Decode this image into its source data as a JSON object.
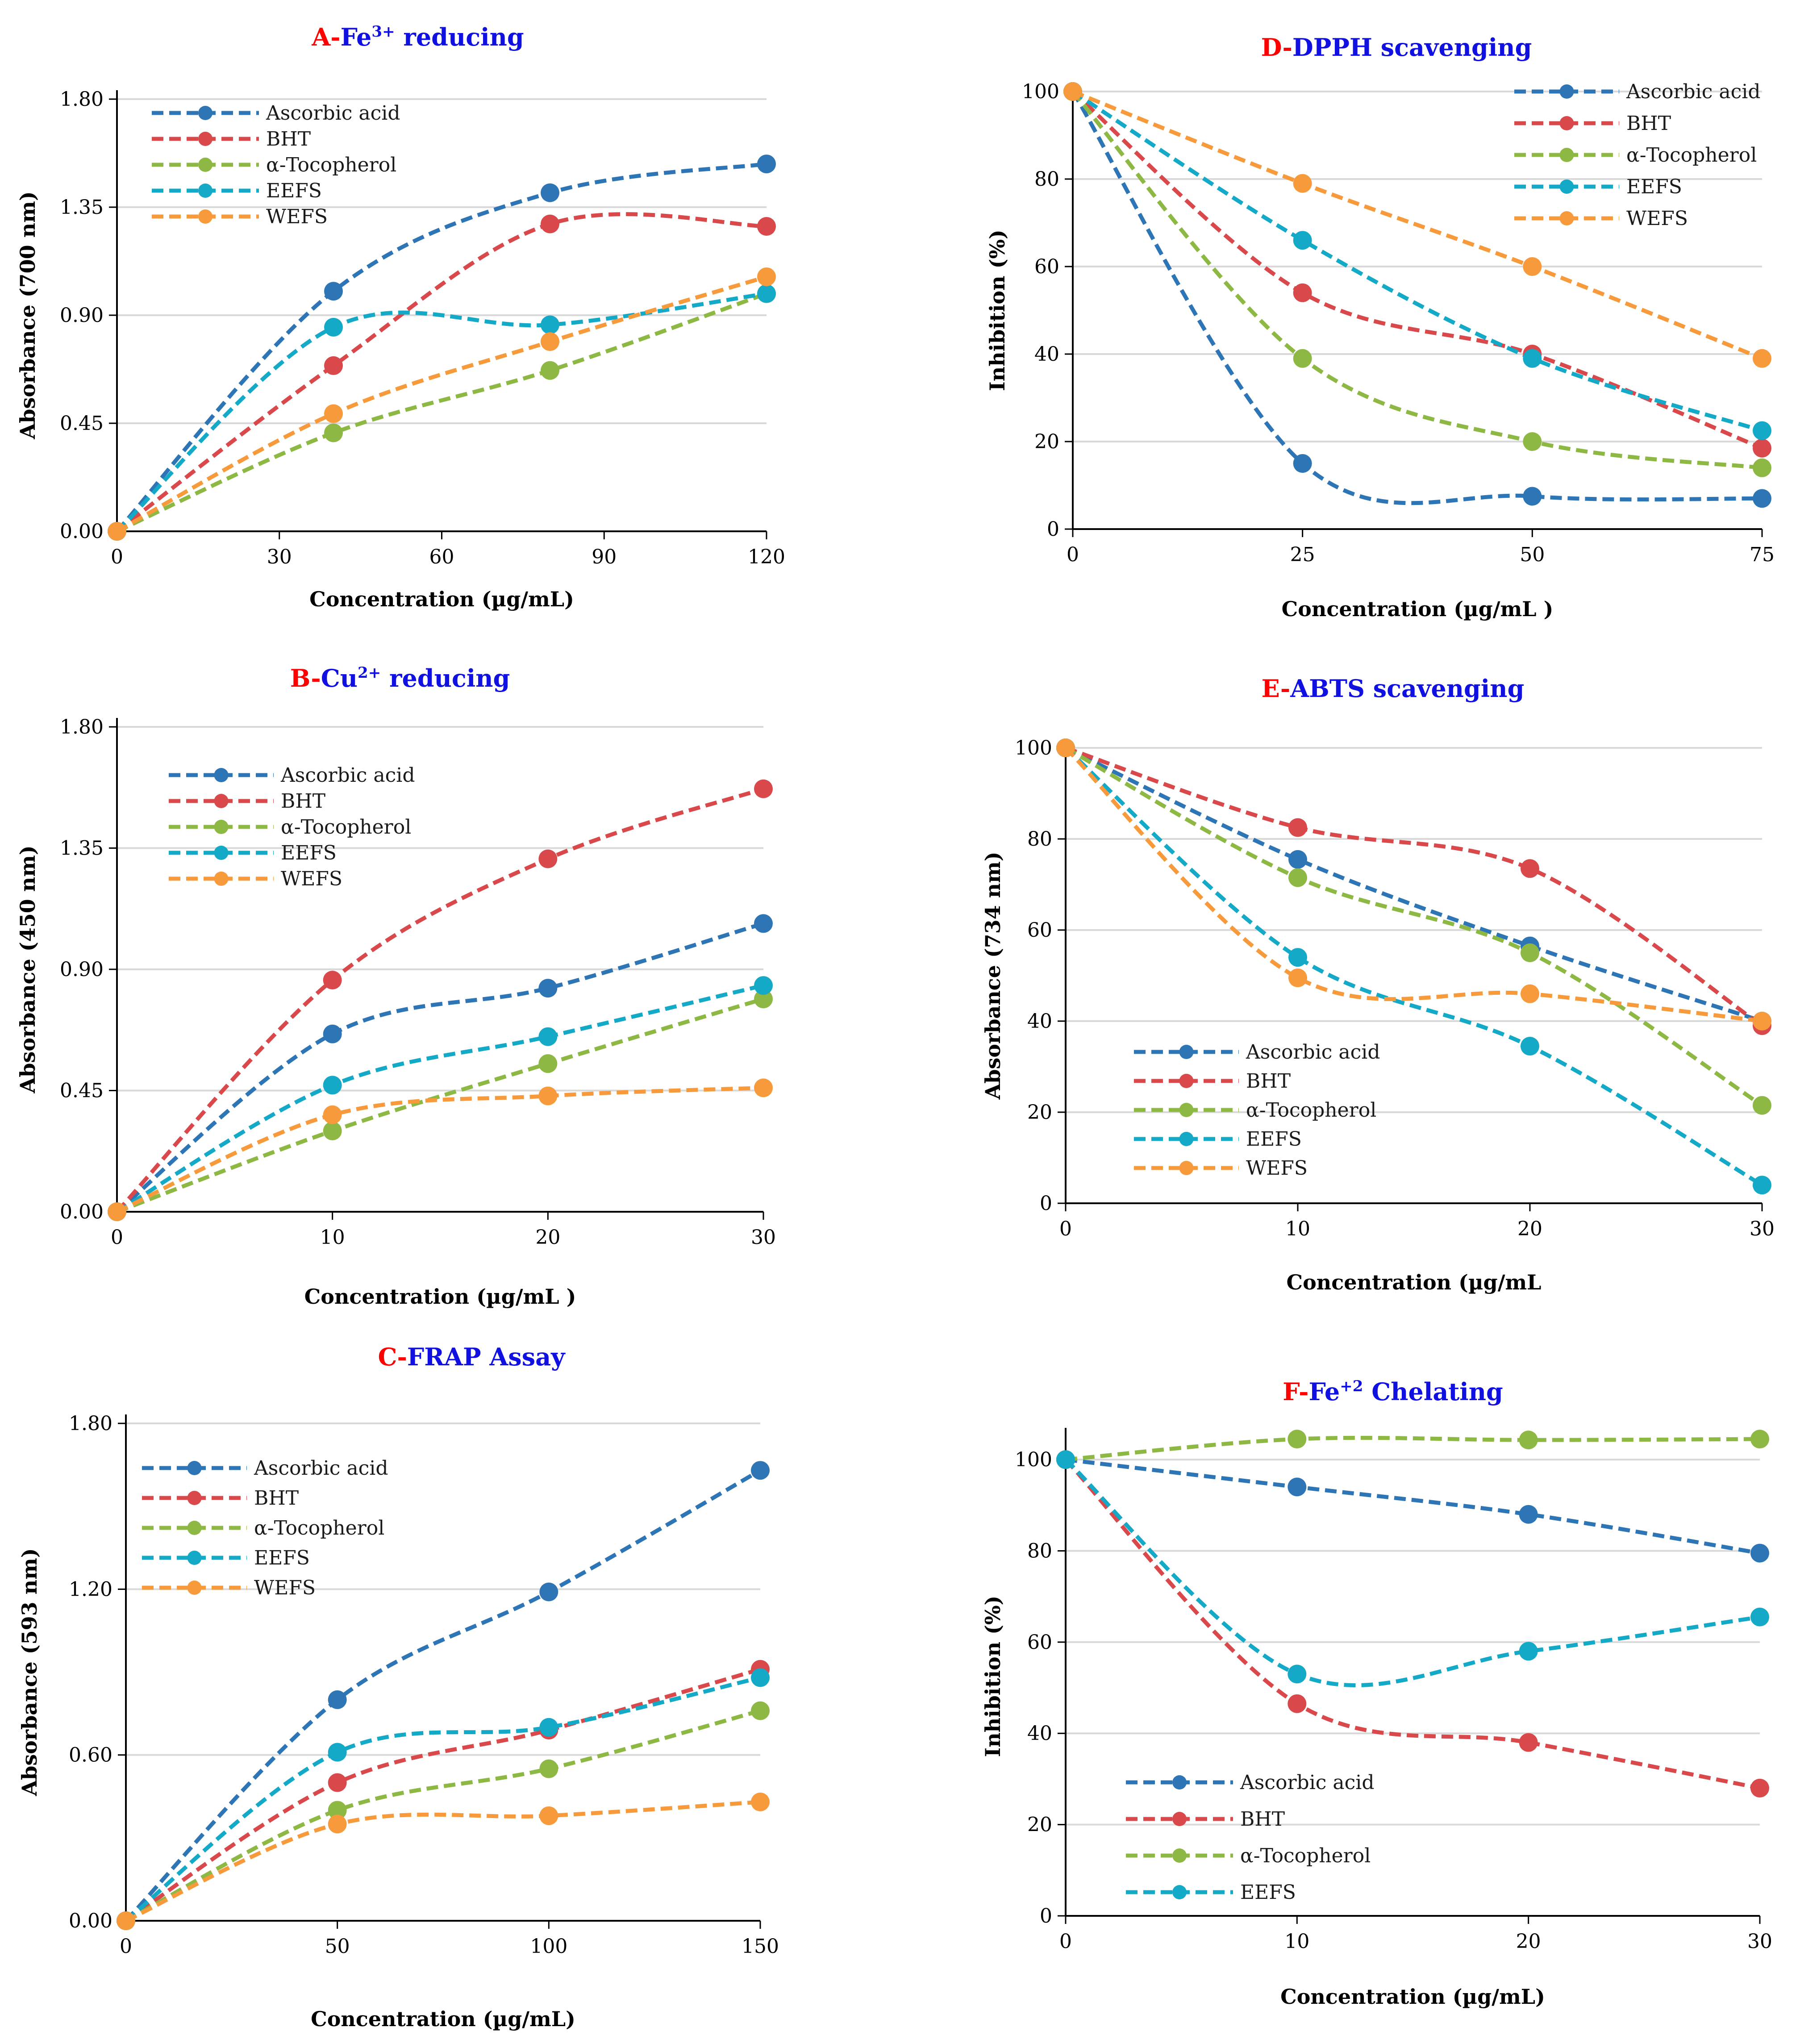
{
  "colors": {
    "Ascorbic acid": "#2e75b6",
    "BHT": "#d9484b",
    "α-Tocopherol": "#8db843",
    "EEFS": "#14a9c6",
    "WEFS": "#f79a3b"
  },
  "chart_data": [
    {
      "id": "A",
      "type": "line",
      "title_prefix": "A-",
      "title_main": "Fe",
      "title_sup": "3+",
      "title_suffix": " reducing",
      "xlabel": "Concentration (µg/mL)",
      "ylabel": "Absorbance (700 nm)",
      "x": [
        0,
        40,
        80,
        120
      ],
      "xlim": [
        0,
        120
      ],
      "ylim": [
        0,
        1.8
      ],
      "xticks": [
        "0",
        "30",
        "60",
        "90",
        "120"
      ],
      "yticks": [
        "0.00",
        "0.45",
        "0.90",
        "1.35",
        "1.80"
      ],
      "legend_position": "top-left",
      "series": [
        {
          "name": "Ascorbic acid",
          "values": [
            0,
            1.0,
            1.41,
            1.53
          ]
        },
        {
          "name": "BHT",
          "values": [
            0,
            0.69,
            1.28,
            1.27
          ]
        },
        {
          "name": "α-Tocopherol",
          "values": [
            0,
            0.41,
            0.67,
            0.99
          ]
        },
        {
          "name": "EEFS",
          "values": [
            0,
            0.85,
            0.86,
            0.99
          ]
        },
        {
          "name": "WEFS",
          "values": [
            0,
            0.49,
            0.79,
            1.06
          ]
        }
      ]
    },
    {
      "id": "D",
      "type": "line",
      "title_prefix": "D-",
      "title_main": "DPPH scavenging",
      "title_sup": "",
      "title_suffix": "",
      "xlabel": "Concentration (µg/mL )",
      "ylabel": "Inhibition (%)",
      "x": [
        0,
        25,
        50,
        75
      ],
      "xlim": [
        0,
        75
      ],
      "ylim": [
        0,
        100
      ],
      "xticks": [
        "0",
        "25",
        "50",
        "75"
      ],
      "yticks": [
        "0",
        "20",
        "40",
        "60",
        "80",
        "100"
      ],
      "legend_position": "top-right",
      "series": [
        {
          "name": "Ascorbic acid",
          "values": [
            100,
            15,
            7.5,
            7
          ]
        },
        {
          "name": "BHT",
          "values": [
            100,
            54,
            40,
            18.5
          ]
        },
        {
          "name": "α-Tocopherol",
          "values": [
            100,
            39,
            20,
            14
          ]
        },
        {
          "name": "EEFS",
          "values": [
            100,
            66,
            39,
            22.5
          ]
        },
        {
          "name": "WEFS",
          "values": [
            100,
            79,
            60,
            39
          ]
        }
      ]
    },
    {
      "id": "B",
      "type": "line",
      "title_prefix": "B-",
      "title_main": "Cu",
      "title_sup": "2+",
      "title_suffix": " reducing",
      "xlabel": "Concentration (µg/mL )",
      "ylabel": "Absorbance (450 nm)",
      "x": [
        0,
        10,
        20,
        30
      ],
      "xlim": [
        0,
        30
      ],
      "ylim": [
        0,
        1.8
      ],
      "xticks": [
        "0",
        "10",
        "20",
        "30"
      ],
      "yticks": [
        "0.00",
        "0.45",
        "0.90",
        "1.35",
        "1.80"
      ],
      "legend_position": "top-left",
      "series": [
        {
          "name": "Ascorbic acid",
          "values": [
            0,
            0.66,
            0.83,
            1.07
          ]
        },
        {
          "name": "BHT",
          "values": [
            0,
            0.86,
            1.31,
            1.57
          ]
        },
        {
          "name": "α-Tocopherol",
          "values": [
            0,
            0.3,
            0.55,
            0.79
          ]
        },
        {
          "name": "EEFS",
          "values": [
            0,
            0.47,
            0.65,
            0.84
          ]
        },
        {
          "name": "WEFS",
          "values": [
            0,
            0.36,
            0.43,
            0.46
          ]
        }
      ]
    },
    {
      "id": "E",
      "type": "line",
      "title_prefix": "E-",
      "title_main": "ABTS scavenging",
      "title_sup": "",
      "title_suffix": "",
      "xlabel": "Concentration (µg/mL",
      "ylabel": "Absorbance (734 nm)",
      "x": [
        0,
        10,
        20,
        30
      ],
      "xlim": [
        0,
        30
      ],
      "ylim": [
        0,
        100
      ],
      "xticks": [
        "0",
        "10",
        "20",
        "30"
      ],
      "yticks": [
        "0",
        "20",
        "40",
        "60",
        "80",
        "100"
      ],
      "legend_position": "bottom-left",
      "series": [
        {
          "name": "Ascorbic acid",
          "values": [
            100,
            75.5,
            56.5,
            40
          ]
        },
        {
          "name": "BHT",
          "values": [
            100,
            82.5,
            73.5,
            39
          ]
        },
        {
          "name": "α-Tocopherol",
          "values": [
            100,
            71.5,
            55,
            21.5
          ]
        },
        {
          "name": "EEFS",
          "values": [
            100,
            54,
            34.5,
            4
          ]
        },
        {
          "name": "WEFS",
          "values": [
            100,
            49.5,
            46,
            40
          ]
        }
      ]
    },
    {
      "id": "C",
      "type": "line",
      "title_prefix": "C-",
      "title_main": "FRAP Assay",
      "title_sup": "",
      "title_suffix": "",
      "xlabel": "Concentration (µg/mL)",
      "ylabel": "Absorbance (593 nm)",
      "x": [
        0,
        50,
        100,
        150
      ],
      "xlim": [
        0,
        150
      ],
      "ylim": [
        0,
        1.8
      ],
      "xticks": [
        "0",
        "50",
        "100",
        "150"
      ],
      "yticks": [
        "0.00",
        "0.60",
        "1.20",
        "1.80"
      ],
      "legend_position": "top-left",
      "series": [
        {
          "name": "Ascorbic acid",
          "values": [
            0,
            0.8,
            1.19,
            1.63
          ]
        },
        {
          "name": "BHT",
          "values": [
            0,
            0.5,
            0.69,
            0.91
          ]
        },
        {
          "name": "α-Tocopherol",
          "values": [
            0,
            0.4,
            0.55,
            0.76
          ]
        },
        {
          "name": "EEFS",
          "values": [
            0,
            0.61,
            0.7,
            0.88
          ]
        },
        {
          "name": "WEFS",
          "values": [
            0,
            0.35,
            0.38,
            0.43
          ]
        }
      ]
    },
    {
      "id": "F",
      "type": "line",
      "title_prefix": "F-",
      "title_main": "Fe",
      "title_sup": "+2",
      "title_suffix": " Chelating",
      "xlabel": "Concentration (µg/mL)",
      "ylabel": "Inhibition (%)",
      "x": [
        0,
        10,
        20,
        30
      ],
      "xlim": [
        0,
        30
      ],
      "ylim": [
        0,
        105
      ],
      "xticks": [
        "0",
        "10",
        "20",
        "30"
      ],
      "yticks": [
        "0",
        "20",
        "40",
        "60",
        "80",
        "100"
      ],
      "legend_position": "bottom-left",
      "series": [
        {
          "name": "Ascorbic acid",
          "values": [
            100,
            94,
            88,
            79.5
          ]
        },
        {
          "name": "BHT",
          "values": [
            100,
            46.5,
            38,
            28
          ]
        },
        {
          "name": "α-Tocopherol",
          "values": [
            100,
            104.5,
            104.3,
            104.5
          ]
        },
        {
          "name": "EEFS",
          "values": [
            100,
            53,
            58,
            65.5
          ]
        }
      ]
    }
  ]
}
